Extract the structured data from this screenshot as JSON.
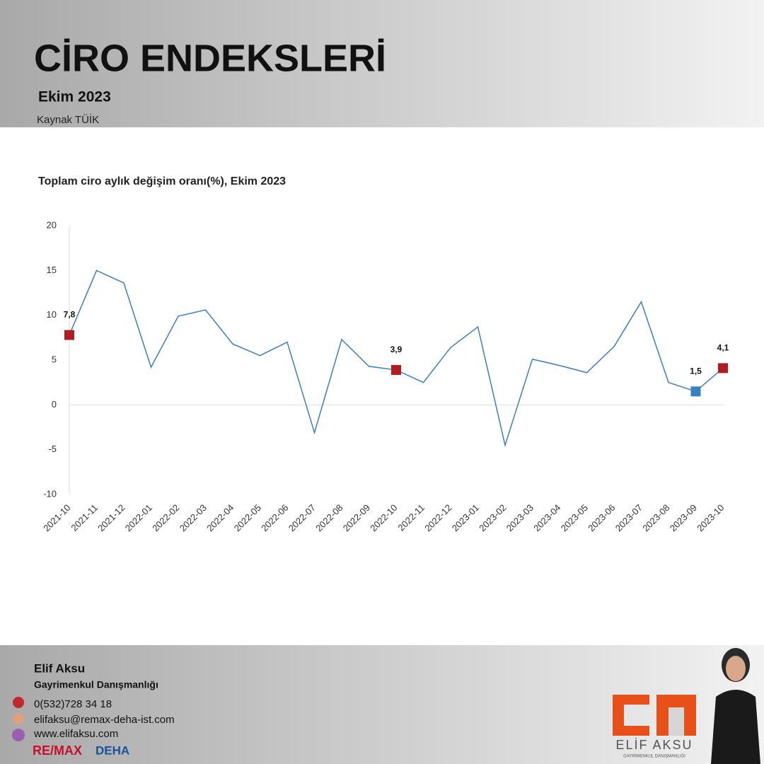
{
  "header": {
    "title": "CİRO ENDEKSLERİ",
    "subtitle": "Ekim 2023",
    "source": "Kaynak TÜİK"
  },
  "chart_data": {
    "type": "line",
    "title": "Toplam ciro aylık değişim oranı(%), Ekim 2023",
    "categories": [
      "2021-10",
      "2021-11",
      "2021-12",
      "2022-01",
      "2022-02",
      "2022-03",
      "2022-04",
      "2022-05",
      "2022-06",
      "2022-07",
      "2022-08",
      "2022-09",
      "2022-10",
      "2022-11",
      "2022-12",
      "2023-01",
      "2023-02",
      "2023-03",
      "2023-04",
      "2023-05",
      "2023-06",
      "2023-07",
      "2023-08",
      "2023-09",
      "2023-10"
    ],
    "values": [
      7.8,
      15.0,
      13.6,
      4.2,
      9.9,
      10.6,
      6.8,
      5.5,
      7.0,
      -3.1,
      7.3,
      4.3,
      3.9,
      2.5,
      6.4,
      8.7,
      -4.5,
      5.1,
      4.4,
      3.6,
      6.5,
      11.5,
      2.5,
      1.5,
      4.1
    ],
    "value_labels": [
      "7,8",
      null,
      null,
      null,
      null,
      null,
      null,
      null,
      null,
      null,
      null,
      null,
      "3,9",
      null,
      null,
      null,
      null,
      null,
      null,
      null,
      null,
      null,
      null,
      "1,5",
      "4,1"
    ],
    "marker_colors": [
      "#b01c22",
      null,
      null,
      null,
      null,
      null,
      null,
      null,
      null,
      null,
      null,
      null,
      "#b01c22",
      null,
      null,
      null,
      null,
      null,
      null,
      null,
      null,
      null,
      null,
      "#3a7fc0",
      "#b01c22"
    ],
    "color": "#3a7fc0",
    "ylim": [
      -10,
      20
    ],
    "yticks": [
      -10,
      -5,
      0,
      5,
      10,
      15,
      20
    ]
  },
  "footer": {
    "name": "Elif Aksu",
    "role": "Gayrimenkul Danışmanlığı",
    "phone": "0(532)728 34 18",
    "email": "elifaksu@remax-deha-ist.com",
    "website": "www.elifaksu.com",
    "brand": "RE/MAX",
    "brand_office": "DEHA",
    "logo_name": "ELİF AKSU",
    "logo_tagline": "GAYRİMENKUL DANIŞMANLIĞI"
  }
}
